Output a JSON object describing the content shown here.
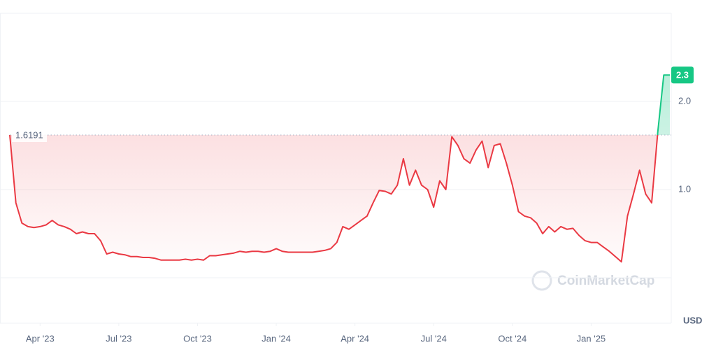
{
  "chart_data": {
    "type": "line",
    "currency": "USD",
    "watermark": "CoinMarketCap",
    "baseline": 1.6191,
    "up_color": "#16c784",
    "down_color": "#ea3943",
    "xlim": [
      0,
      109
    ],
    "xticks": [
      {
        "value": 5,
        "label": "Apr '23"
      },
      {
        "value": 18,
        "label": "Jul '23"
      },
      {
        "value": 31,
        "label": "Oct '23"
      },
      {
        "value": 44,
        "label": "Jan '24"
      },
      {
        "value": 57,
        "label": "Apr '24"
      },
      {
        "value": 70,
        "label": "Jul '24"
      },
      {
        "value": 83,
        "label": "Oct '24"
      },
      {
        "value": 96,
        "label": "Jan '25"
      }
    ],
    "ylim": [
      0,
      3
    ],
    "yticks": [
      {
        "value": 1,
        "label": "1.0"
      },
      {
        "value": 2,
        "label": "2.0"
      }
    ],
    "grid": true,
    "values": [
      1.62,
      0.85,
      0.62,
      0.58,
      0.57,
      0.58,
      0.6,
      0.65,
      0.6,
      0.58,
      0.55,
      0.5,
      0.52,
      0.5,
      0.5,
      0.42,
      0.27,
      0.29,
      0.27,
      0.26,
      0.24,
      0.24,
      0.23,
      0.23,
      0.22,
      0.2,
      0.2,
      0.2,
      0.2,
      0.21,
      0.2,
      0.21,
      0.2,
      0.25,
      0.25,
      0.26,
      0.27,
      0.28,
      0.3,
      0.29,
      0.3,
      0.3,
      0.29,
      0.3,
      0.33,
      0.3,
      0.29,
      0.29,
      0.29,
      0.29,
      0.29,
      0.3,
      0.31,
      0.33,
      0.4,
      0.58,
      0.55,
      0.6,
      0.65,
      0.7,
      0.85,
      0.99,
      0.98,
      0.95,
      1.05,
      1.35,
      1.05,
      1.22,
      1.05,
      1.0,
      0.8,
      1.1,
      1.0,
      1.6,
      1.5,
      1.35,
      1.3,
      1.45,
      1.55,
      1.25,
      1.5,
      1.52,
      1.3,
      1.05,
      0.75,
      0.7,
      0.68,
      0.62,
      0.5,
      0.58,
      0.52,
      0.58,
      0.55,
      0.56,
      0.48,
      0.42,
      0.4,
      0.4,
      0.35,
      0.3,
      0.24,
      0.18,
      0.7,
      0.95,
      1.22,
      0.95,
      0.85,
      1.65,
      2.3,
      2.3
    ]
  }
}
